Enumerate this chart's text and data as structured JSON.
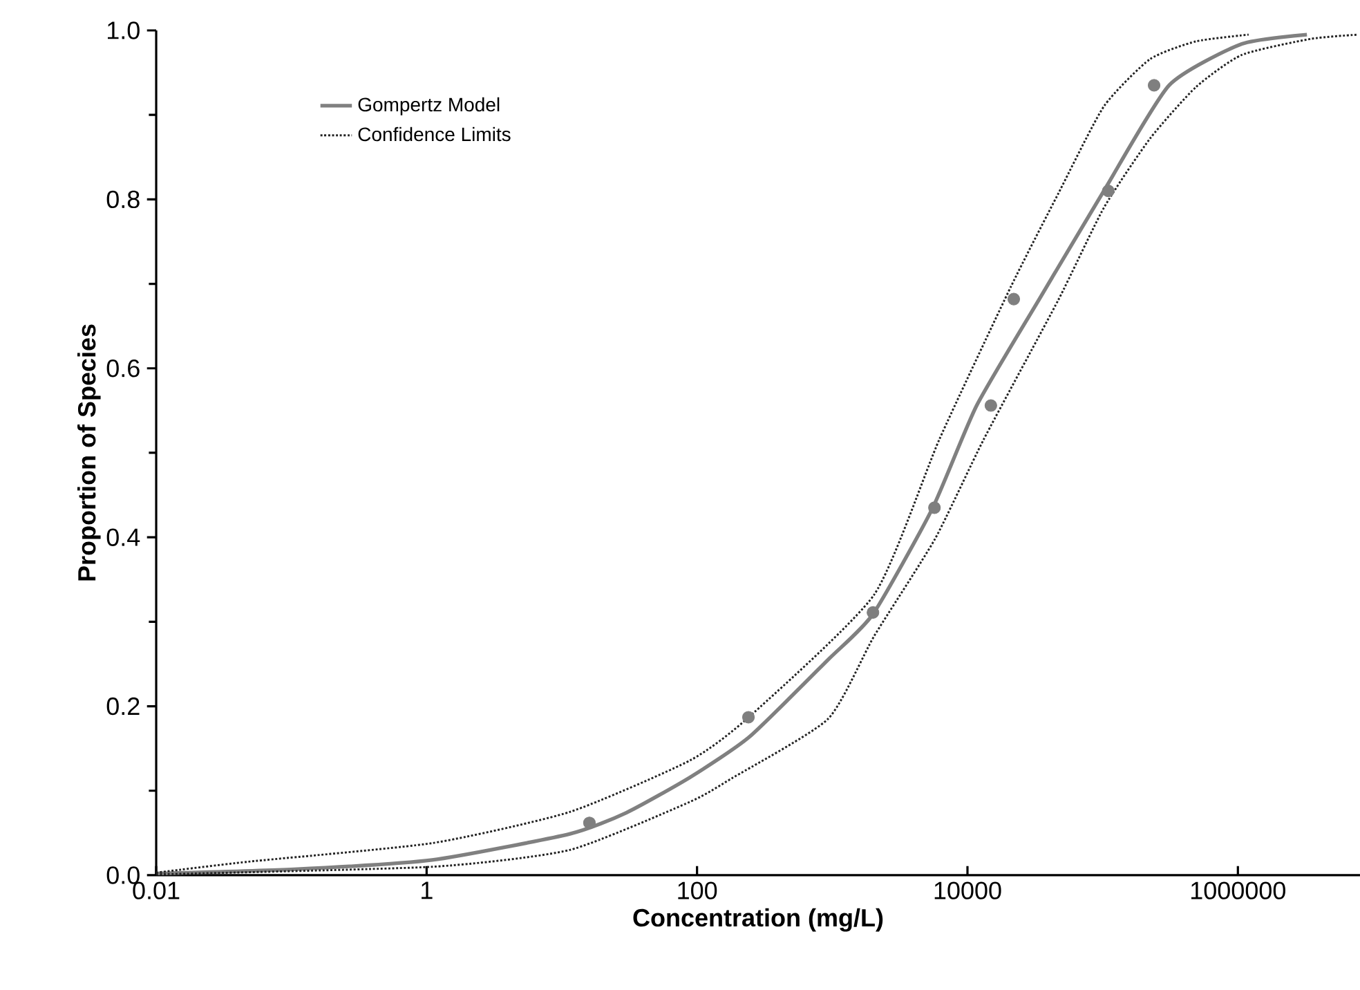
{
  "chart_data": {
    "type": "line",
    "xlabel": "Concentration (mg/L)",
    "ylabel": "Proportion of Species",
    "log": "x",
    "xlim": [
      0.01,
      8000000
    ],
    "xticks": [
      0.01,
      1,
      100,
      10000,
      1000000
    ],
    "ylim": [
      0,
      1
    ],
    "yticks": [
      {
        "value": 0,
        "label": "0.0"
      },
      0.2,
      0.4,
      0.6,
      0.8,
      {
        "value": 1,
        "label": "1.0"
      }
    ],
    "grid": false,
    "legend": "top left",
    "series": [
      {
        "type": "scatter",
        "marker": "circle",
        "color": "#7f7f7f",
        "x": [
          16,
          240,
          2000,
          5700,
          14900,
          22000,
          110000,
          240000
        ],
        "values": [
          0.062,
          0.187,
          0.311,
          0.435,
          0.556,
          0.682,
          0.81,
          0.935
        ]
      },
      {
        "name": "Gompertz Model",
        "line_style": "solid",
        "color": "#808080",
        "x": [
          0.01,
          0.105,
          1.1,
          11.5,
          30,
          89,
          245,
          930,
          2000,
          5500,
          11700,
          34000,
          102000,
          310000,
          1070000,
          3240000
        ],
        "values": [
          0.002,
          0.007,
          0.018,
          0.049,
          0.074,
          0.116,
          0.164,
          0.255,
          0.309,
          0.434,
          0.556,
          0.682,
          0.81,
          0.935,
          0.984,
          0.995
        ]
      },
      {
        "name": "Confidence Limits",
        "line_style": "dotted",
        "color": "#222222",
        "x": [
          0.01,
          0.048,
          1.1,
          11.5,
          89,
          245,
          2040,
          6200,
          21000,
          47000,
          102000,
          224000,
          490000,
          1200000
        ],
        "values": [
          0.003,
          0.016,
          0.038,
          0.075,
          0.136,
          0.188,
          0.332,
          0.516,
          0.697,
          0.807,
          0.91,
          0.966,
          0.987,
          0.995
        ]
      },
      {
        "line_style": "dotted",
        "color": "#222222",
        "x": [
          0.01,
          1.1,
          11.5,
          89,
          182,
          930,
          2040,
          5750,
          13200,
          47000,
          102000,
          224000,
          490000,
          1070000,
          3470000,
          7760000
        ],
        "values": [
          0.001,
          0.01,
          0.03,
          0.087,
          0.115,
          0.185,
          0.283,
          0.398,
          0.516,
          0.681,
          0.79,
          0.872,
          0.933,
          0.971,
          0.99,
          0.995
        ]
      }
    ]
  }
}
